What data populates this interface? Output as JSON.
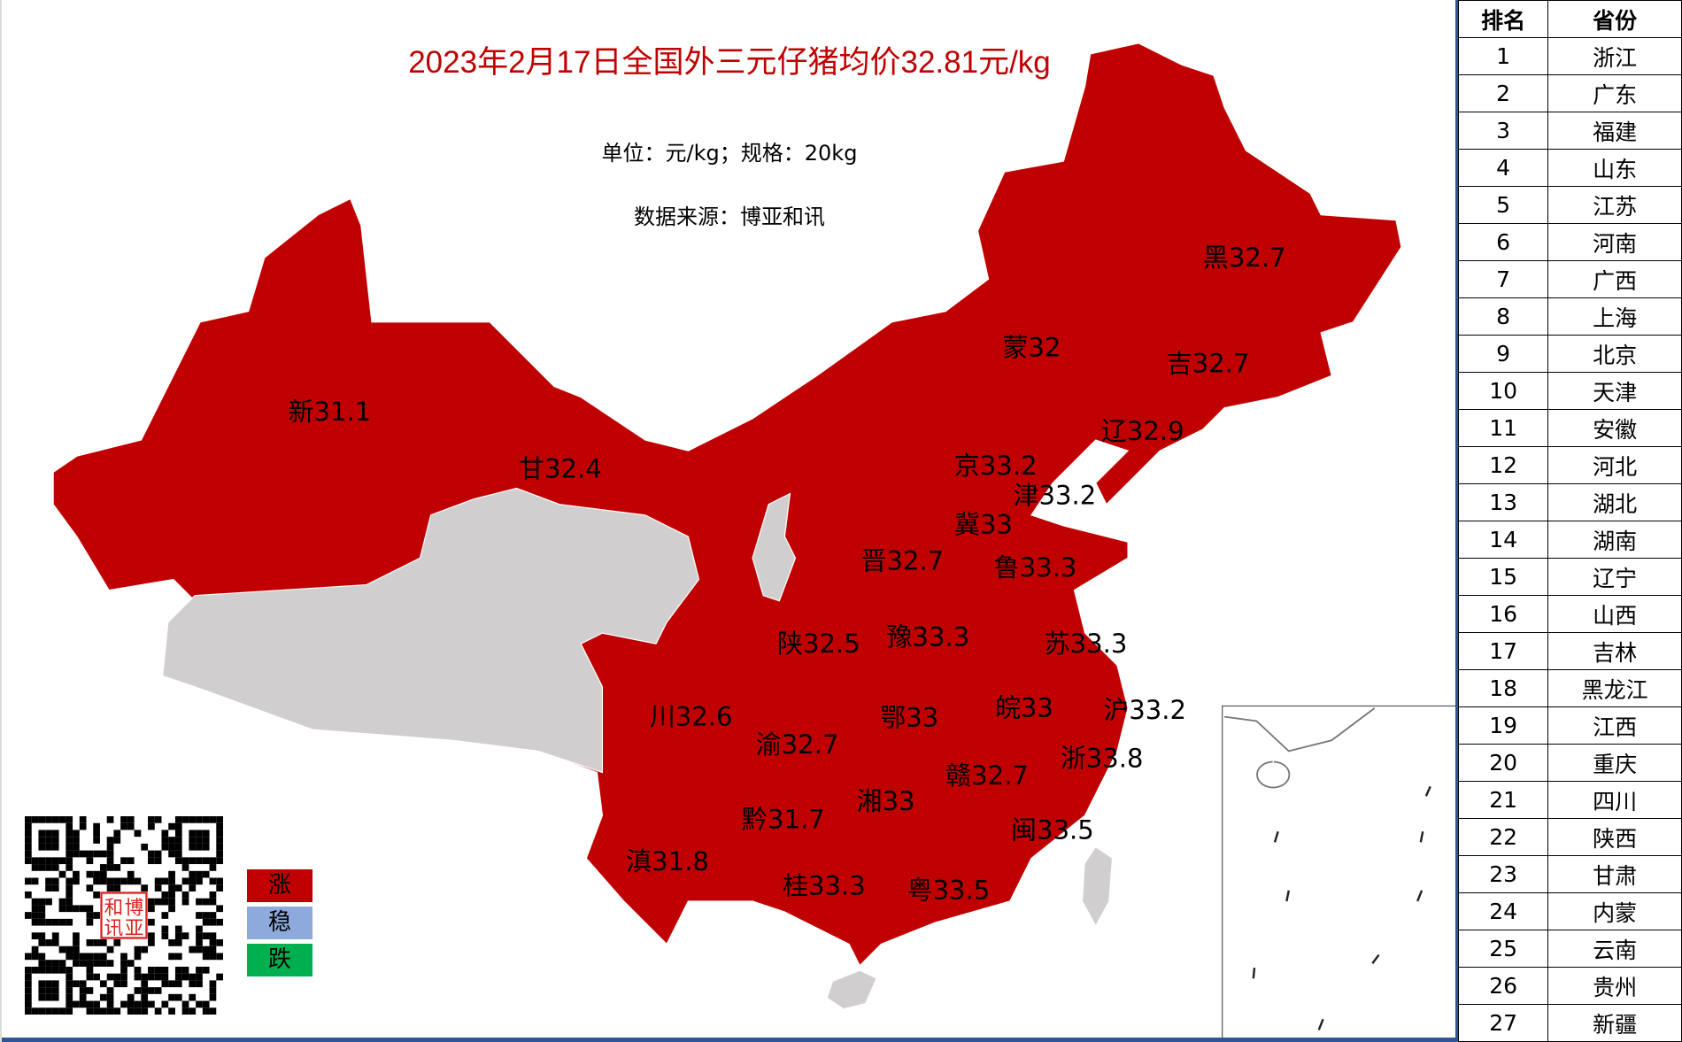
{
  "title": "2023年2月17日全国外三元仔猪均价32.81元/kg",
  "unit": "单位：元/kg；规格：20kg",
  "source": "数据来源：博亚和讯",
  "colors": {
    "rise": "#C00000",
    "stable": "#8EA9DB",
    "fall": "#00B050",
    "nodata": "#D0CECE",
    "title": "#C00000"
  },
  "legend": [
    {
      "label": "涨",
      "color": "#C00000"
    },
    {
      "label": "稳",
      "color": "#8EA9DB"
    },
    {
      "label": "跌",
      "color": "#00B050"
    }
  ],
  "logo_text": "博亚和讯",
  "map_labels": [
    {
      "abbr": "黑",
      "price": 32.7,
      "text": "黑32.7"
    },
    {
      "abbr": "蒙",
      "price": 32,
      "text": "蒙32"
    },
    {
      "abbr": "吉",
      "price": 32.7,
      "text": "吉32.7"
    },
    {
      "abbr": "新",
      "price": 31.1,
      "text": "新31.1"
    },
    {
      "abbr": "辽",
      "price": 32.9,
      "text": "辽32.9"
    },
    {
      "abbr": "甘",
      "price": 32.4,
      "text": "甘32.4"
    },
    {
      "abbr": "京",
      "price": 33.2,
      "text": "京33.2"
    },
    {
      "abbr": "津",
      "price": 33.2,
      "text": "津33.2"
    },
    {
      "abbr": "冀",
      "price": 33,
      "text": "冀33"
    },
    {
      "abbr": "晋",
      "price": 32.7,
      "text": "晋32.7"
    },
    {
      "abbr": "鲁",
      "price": 33.3,
      "text": "鲁33.3"
    },
    {
      "abbr": "陕",
      "price": 32.5,
      "text": "陕32.5"
    },
    {
      "abbr": "豫",
      "price": 33.3,
      "text": "豫33.3"
    },
    {
      "abbr": "苏",
      "price": 33.3,
      "text": "苏33.3"
    },
    {
      "abbr": "川",
      "price": 32.6,
      "text": "川32.6"
    },
    {
      "abbr": "鄂",
      "price": 33,
      "text": "鄂33"
    },
    {
      "abbr": "皖",
      "price": 33,
      "text": "皖33"
    },
    {
      "abbr": "沪",
      "price": 33.2,
      "text": "沪33.2"
    },
    {
      "abbr": "渝",
      "price": 32.7,
      "text": "渝32.7"
    },
    {
      "abbr": "浙",
      "price": 33.8,
      "text": "浙33.8"
    },
    {
      "abbr": "赣",
      "price": 32.7,
      "text": "赣32.7"
    },
    {
      "abbr": "湘",
      "price": 33,
      "text": "湘33"
    },
    {
      "abbr": "黔",
      "price": 31.7,
      "text": "黔31.7"
    },
    {
      "abbr": "闽",
      "price": 33.5,
      "text": "闽33.5"
    },
    {
      "abbr": "滇",
      "price": 31.8,
      "text": "滇31.8"
    },
    {
      "abbr": "桂",
      "price": 33.3,
      "text": "桂33.3"
    },
    {
      "abbr": "粤",
      "price": 33.5,
      "text": "粤33.5"
    }
  ],
  "ranking": {
    "headers": [
      "排名",
      "省份"
    ],
    "rows": [
      [
        "1",
        "浙江"
      ],
      [
        "2",
        "广东"
      ],
      [
        "3",
        "福建"
      ],
      [
        "4",
        "山东"
      ],
      [
        "5",
        "江苏"
      ],
      [
        "6",
        "河南"
      ],
      [
        "7",
        "广西"
      ],
      [
        "8",
        "上海"
      ],
      [
        "9",
        "北京"
      ],
      [
        "10",
        "天津"
      ],
      [
        "11",
        "安徽"
      ],
      [
        "12",
        "河北"
      ],
      [
        "13",
        "湖北"
      ],
      [
        "14",
        "湖南"
      ],
      [
        "15",
        "辽宁"
      ],
      [
        "16",
        "山西"
      ],
      [
        "17",
        "吉林"
      ],
      [
        "18",
        "黑龙江"
      ],
      [
        "19",
        "江西"
      ],
      [
        "20",
        "重庆"
      ],
      [
        "21",
        "四川"
      ],
      [
        "22",
        "陕西"
      ],
      [
        "23",
        "甘肃"
      ],
      [
        "24",
        "内蒙"
      ],
      [
        "25",
        "云南"
      ],
      [
        "26",
        "贵州"
      ],
      [
        "27",
        "新疆"
      ]
    ]
  }
}
